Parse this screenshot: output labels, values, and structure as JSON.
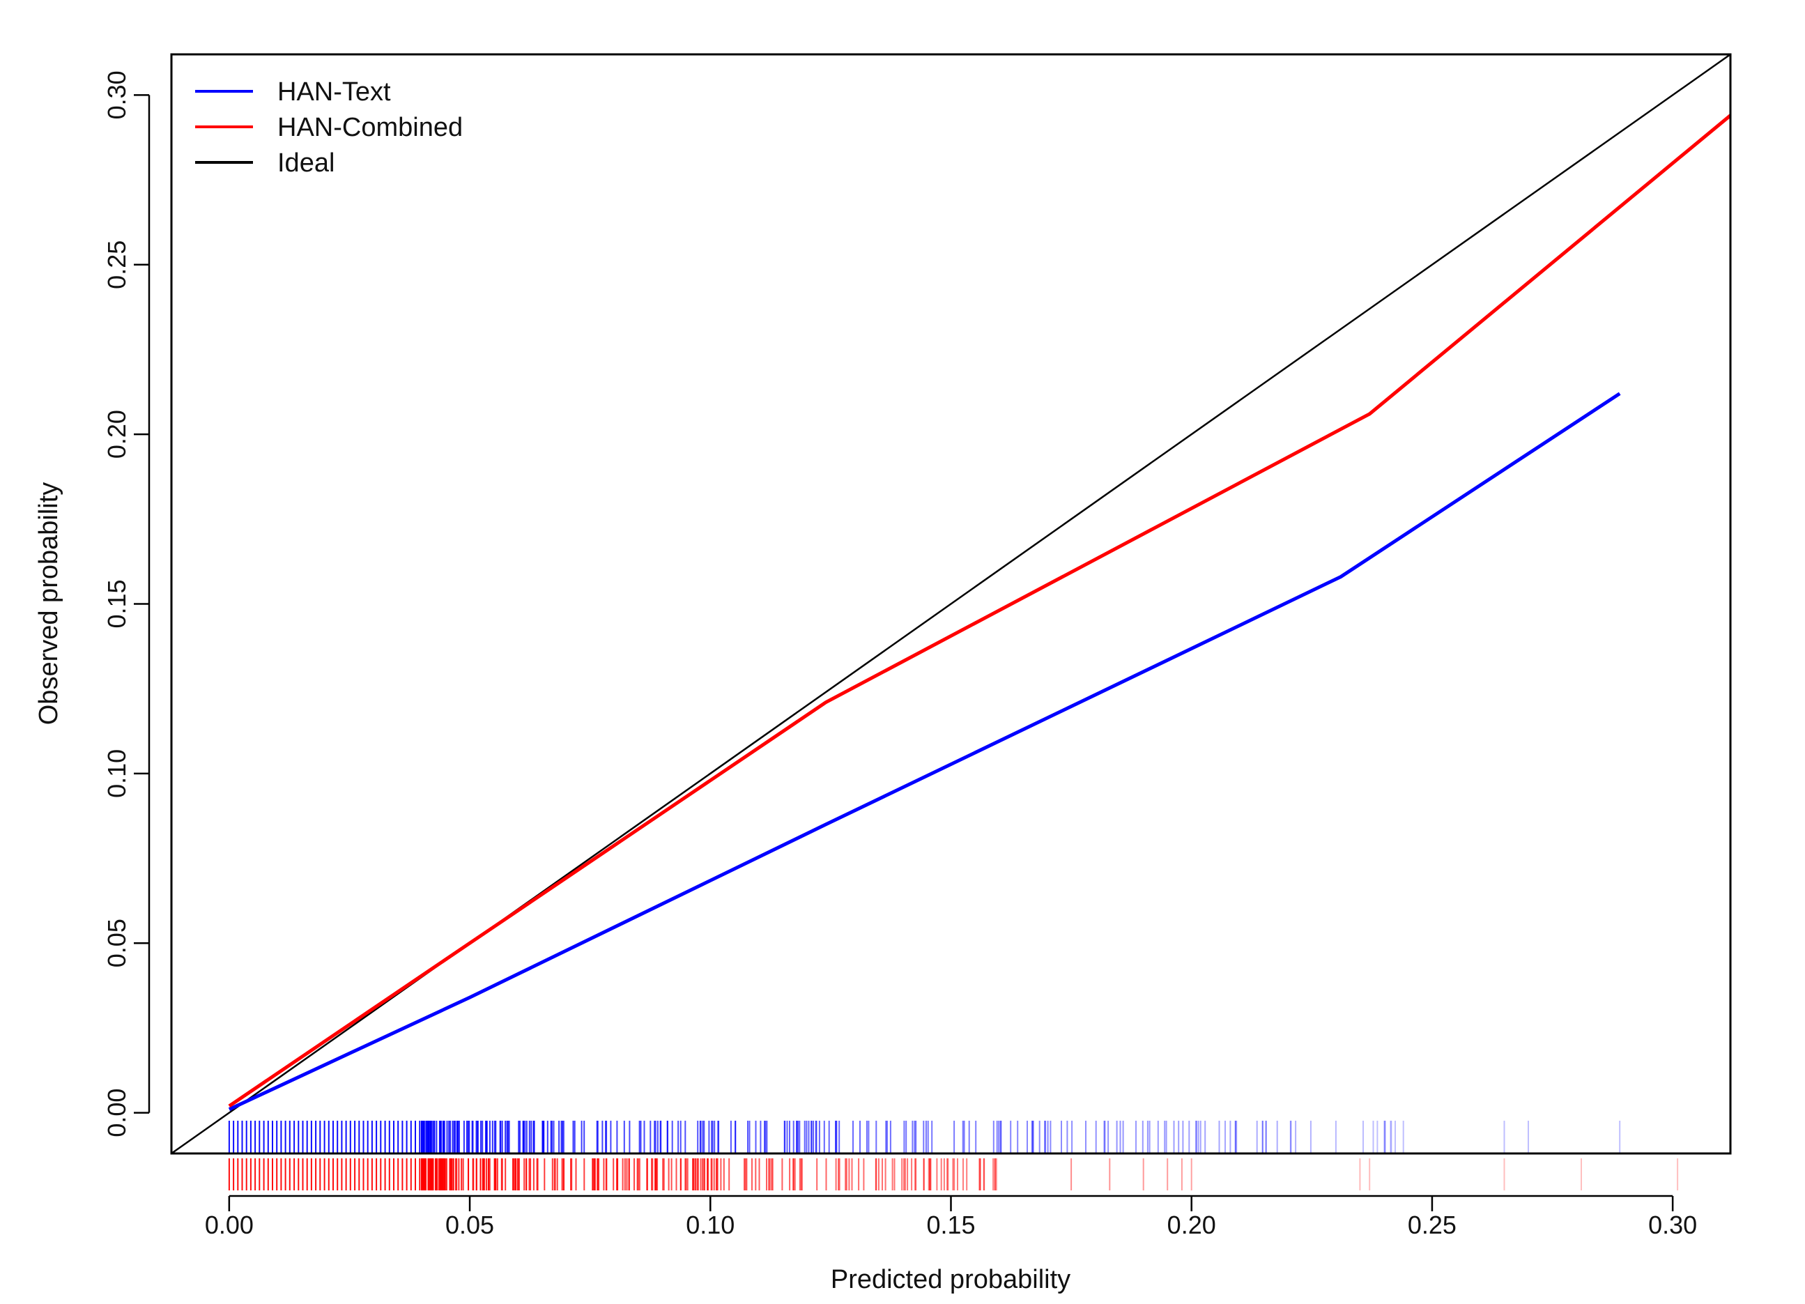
{
  "chart_data": {
    "type": "line",
    "title": "",
    "xlabel": "Predicted probability",
    "ylabel": "Observed probability",
    "xlim": [
      -0.012,
      0.312
    ],
    "ylim": [
      -0.012,
      0.312
    ],
    "xticks": [
      0.0,
      0.05,
      0.1,
      0.15,
      0.2,
      0.25,
      0.3
    ],
    "xtick_labels": [
      "0.00",
      "0.05",
      "0.10",
      "0.15",
      "0.20",
      "0.25",
      "0.30"
    ],
    "yticks": [
      0.0,
      0.05,
      0.1,
      0.15,
      0.2,
      0.25,
      0.3
    ],
    "ytick_labels": [
      "0.00",
      "0.05",
      "0.10",
      "0.15",
      "0.20",
      "0.25",
      "0.30"
    ],
    "grid": false,
    "legend_position": "top-left",
    "series": [
      {
        "name": "HAN-Text",
        "color": "#0000ff",
        "x": [
          0.0,
          0.05,
          0.124,
          0.231,
          0.289
        ],
        "y": [
          0.001,
          0.034,
          0.085,
          0.158,
          0.212
        ]
      },
      {
        "name": "HAN-Combined",
        "color": "#ff0000",
        "x": [
          0.0,
          0.05,
          0.124,
          0.237,
          0.312
        ],
        "y": [
          0.002,
          0.05,
          0.121,
          0.206,
          0.294
        ]
      },
      {
        "name": "Ideal",
        "color": "#000000",
        "x": [
          -0.012,
          0.312
        ],
        "y": [
          -0.012,
          0.312
        ]
      }
    ],
    "rug": {
      "HAN-Text": {
        "color": "#0000ff",
        "dense_to": 0.04,
        "sparse_to": 0.245,
        "extra": [
          0.265,
          0.27,
          0.289
        ]
      },
      "HAN-Combined": {
        "color": "#ff0000",
        "dense_to": 0.04,
        "sparse_to": 0.16,
        "extra": [
          0.175,
          0.183,
          0.19,
          0.195,
          0.198,
          0.2,
          0.235,
          0.237,
          0.265,
          0.281,
          0.301
        ]
      }
    }
  }
}
